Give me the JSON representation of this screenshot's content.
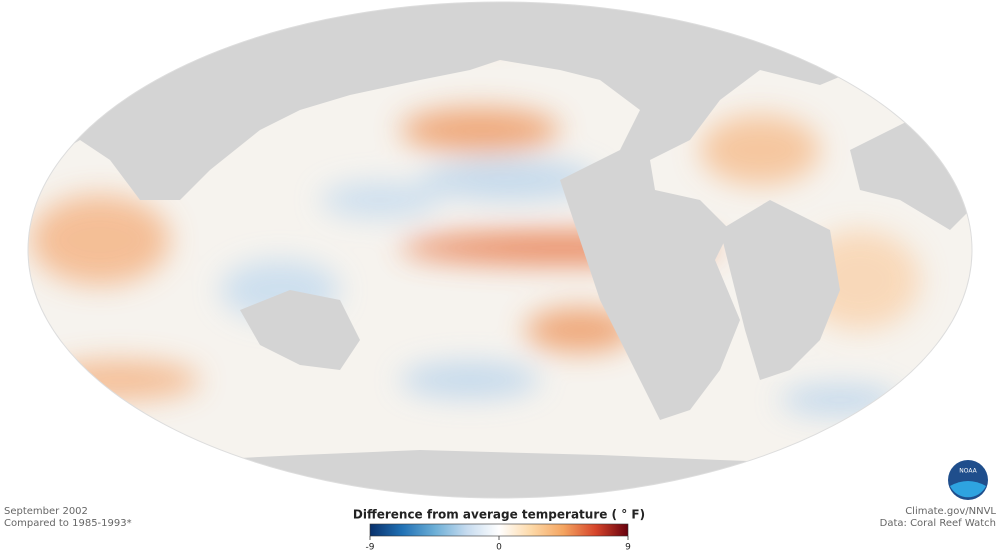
{
  "map": {
    "date": "September 2002",
    "baseline": "Compared to 1985-1993*",
    "credit": "Climate.gov/NNVL",
    "source": "Data: Coral Reef Watch",
    "logo": "NOAA"
  },
  "legend": {
    "title": "Difference from average temperature ( ° F)",
    "range": [
      -9,
      9
    ],
    "ticks": [
      -9,
      0,
      9
    ],
    "colors": [
      "#08306b",
      "#2171b5",
      "#6baed6",
      "#c6dbef",
      "#ffffff",
      "#fdd9a8",
      "#f4a460",
      "#d6452b",
      "#67000d"
    ]
  }
}
